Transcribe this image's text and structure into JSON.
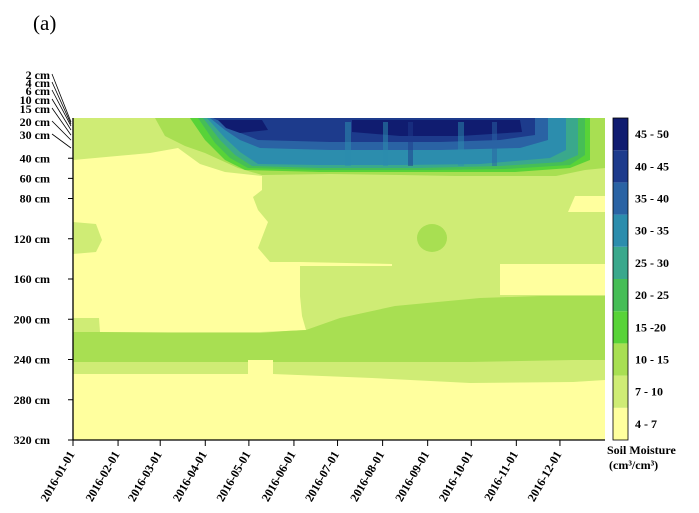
{
  "panel_label": "(a)",
  "colors": {
    "c1": "#ffff9e",
    "c2": "#cfec75",
    "c3": "#a8df52",
    "c4": "#58d338",
    "c5": "#46be56",
    "c6": "#3aa88c",
    "c7": "#2c8dad",
    "c8": "#2a63a4",
    "c9": "#1d3b8c",
    "c10": "#101c70"
  },
  "chart_data": {
    "type": "heatmap",
    "title": "",
    "xlabel": "",
    "ylabel": "",
    "x_ticks": [
      "2016-01-01",
      "2016-02-01",
      "2016-03-01",
      "2016-04-01",
      "2016-05-01",
      "2016-06-01",
      "2016-07-01",
      "2016-08-01",
      "2016-09-01",
      "2016-10-01",
      "2016-11-01",
      "2016-12-01"
    ],
    "x_range": [
      "2016-01-01",
      "2016-12-31"
    ],
    "depth_ticks": [
      {
        "label": "2 cm",
        "depth": 2
      },
      {
        "label": "4 cm",
        "depth": 4
      },
      {
        "label": "6 cm",
        "depth": 6
      },
      {
        "label": "10 cm",
        "depth": 10
      },
      {
        "label": "15 cm",
        "depth": 15
      },
      {
        "label": "20 cm",
        "depth": 20
      },
      {
        "label": "30 cm",
        "depth": 30
      },
      {
        "label": "40 cm",
        "depth": 40
      },
      {
        "label": "60 cm",
        "depth": 60
      },
      {
        "label": "80 cm",
        "depth": 80
      },
      {
        "label": "120 cm",
        "depth": 120
      },
      {
        "label": "160 cm",
        "depth": 160
      },
      {
        "label": "200 cm",
        "depth": 200
      },
      {
        "label": "240 cm",
        "depth": 240
      },
      {
        "label": "280 cm",
        "depth": 280
      },
      {
        "label": "320 cm",
        "depth": 320
      }
    ],
    "legend": {
      "title_line1": "Soil Moisture",
      "title_line2": "(cm³/cm³)",
      "bins": [
        {
          "label": "4 - 7",
          "color": "#ffff9e"
        },
        {
          "label": "7 - 10",
          "color": "#cfec75"
        },
        {
          "label": "10 - 15",
          "color": "#a8df52"
        },
        {
          "label": "15 -20",
          "color": "#58d338"
        },
        {
          "label": "20 - 25",
          "color": "#46be56"
        },
        {
          "label": "25 - 30",
          "color": "#3aa88c"
        },
        {
          "label": "30 - 35",
          "color": "#2c8dad"
        },
        {
          "label": "35 - 40",
          "color": "#2a63a4"
        },
        {
          "label": "40 - 45",
          "color": "#1d3b8c"
        },
        {
          "label": "45 - 50",
          "color": "#101c70"
        }
      ]
    }
  }
}
